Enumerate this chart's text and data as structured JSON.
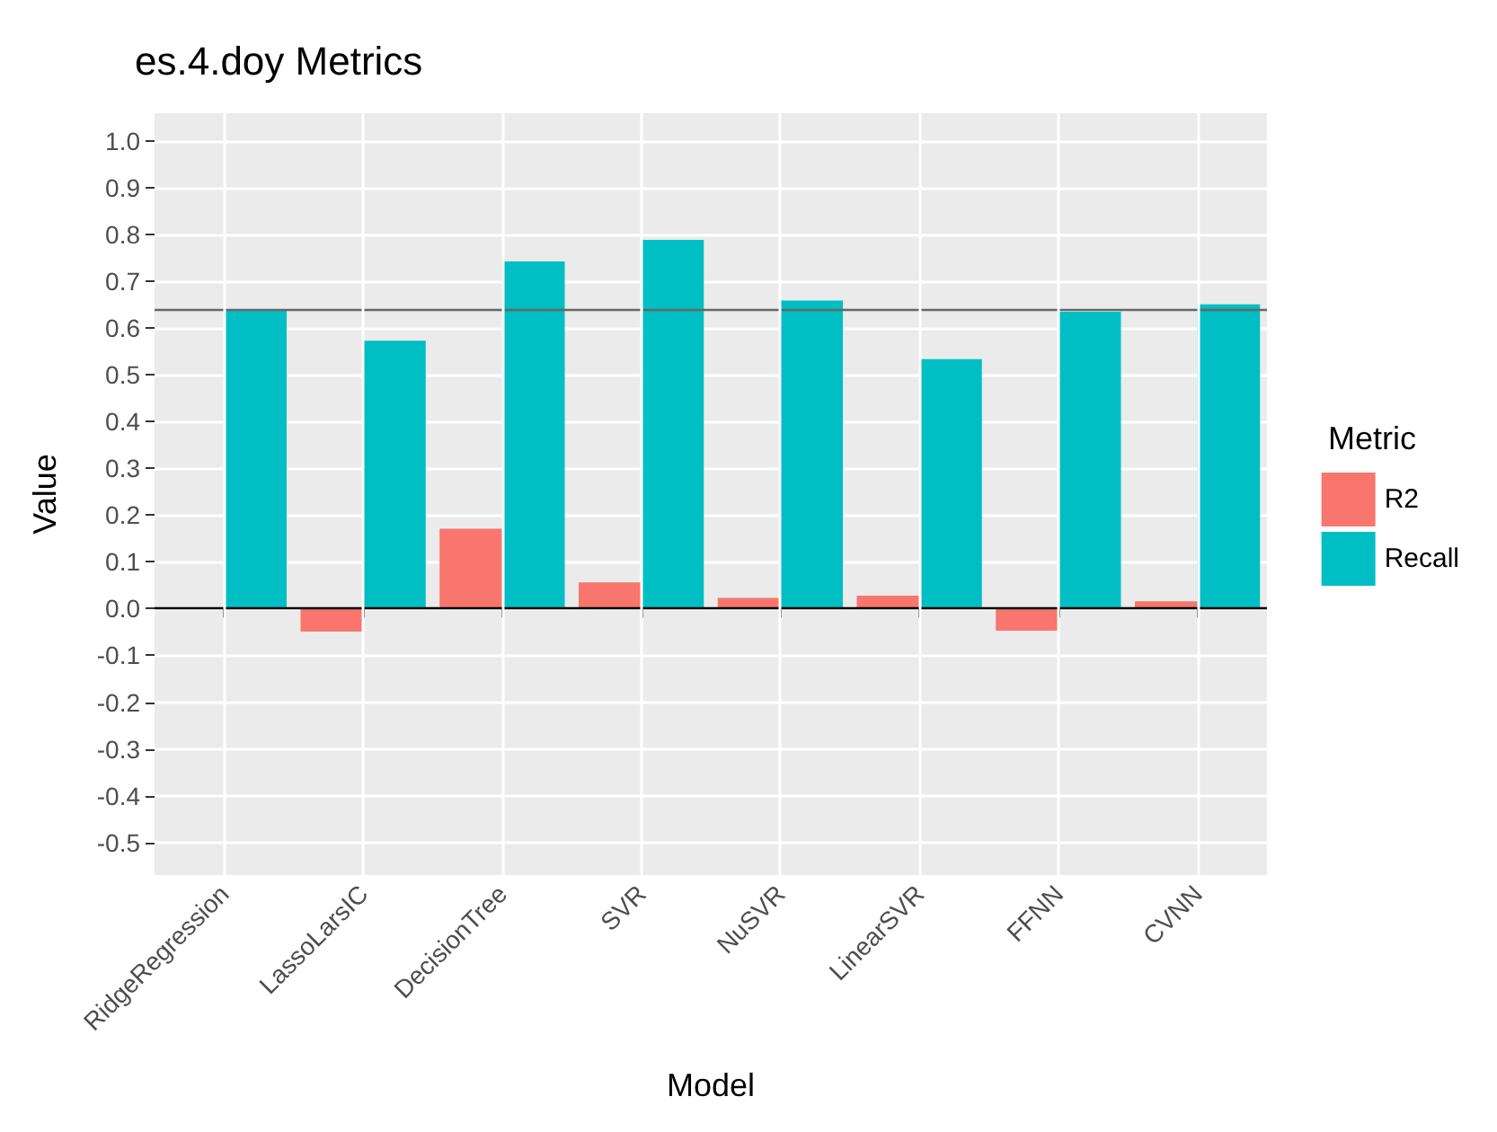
{
  "chart_data": {
    "type": "bar",
    "title": "es.4.doy Metrics",
    "xlabel": "Model",
    "ylabel": "Value",
    "legend_title": "Metric",
    "categories": [
      "RidgeRegression",
      "LassoLarsIC",
      "DecisionTree",
      "SVR",
      "NuSVR",
      "LinearSVR",
      "FFNN",
      "CVNN"
    ],
    "series": [
      {
        "name": "R2",
        "color": "#f8766d",
        "values": [
          null,
          -0.049,
          0.171,
          0.056,
          0.023,
          0.028,
          -0.047,
          0.016
        ]
      },
      {
        "name": "Recall",
        "color": "#00bfc4",
        "values": [
          0.64,
          0.573,
          0.743,
          0.789,
          0.659,
          0.534,
          0.635,
          0.651
        ]
      }
    ],
    "ylim": [
      -0.57,
      1.06
    ],
    "yticks": [
      -0.5,
      -0.4,
      -0.3,
      -0.2,
      -0.1,
      {
        "value": 0,
        "label": "0.0"
      },
      0.1,
      0.2,
      0.3,
      0.4,
      0.5,
      0.6,
      0.7,
      0.8,
      0.9,
      {
        "value": 1,
        "label": "1.0"
      }
    ],
    "ref_lines": [
      {
        "axis": "y",
        "value": 0,
        "color": "#000000"
      },
      {
        "axis": "y",
        "value": 0.64,
        "color": "#666666"
      }
    ],
    "grid": true,
    "legend": "right"
  }
}
